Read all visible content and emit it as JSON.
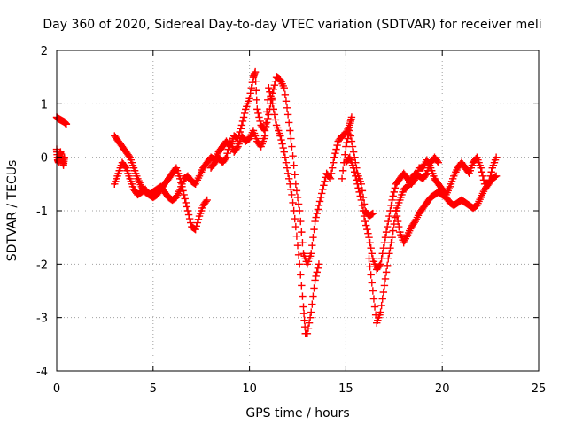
{
  "chart_data": {
    "type": "scatter",
    "title": "Day 360 of 2020, Sidereal Day-to-day VTEC variation (SDTVAR) for receiver meli",
    "xlabel": "GPS time / hours",
    "ylabel": "SDTVAR / TECUs",
    "xlim": [
      0,
      25
    ],
    "ylim": [
      -4,
      2
    ],
    "xticks": [
      0,
      5,
      10,
      15,
      20,
      25
    ],
    "yticks": [
      -4,
      -3,
      -2,
      -1,
      0,
      1,
      2
    ],
    "grid": true,
    "marker": "+",
    "color": "#ff0000",
    "series": [
      {
        "name": "SDTVAR",
        "segments": [
          [
            [
              0.0,
              0.75
            ],
            [
              0.1,
              0.72
            ],
            [
              0.2,
              0.7
            ],
            [
              0.3,
              0.68
            ],
            [
              0.4,
              0.66
            ],
            [
              0.5,
              0.62
            ]
          ],
          [
            [
              0.0,
              0.15
            ],
            [
              0.05,
              -0.05
            ],
            [
              0.1,
              -0.1
            ],
            [
              0.15,
              0.05
            ],
            [
              0.2,
              0.1
            ],
            [
              0.3,
              -0.05
            ],
            [
              0.35,
              -0.15
            ],
            [
              0.4,
              0.0
            ]
          ],
          [
            [
              3.0,
              0.4
            ],
            [
              3.2,
              0.3
            ],
            [
              3.4,
              0.2
            ],
            [
              3.6,
              0.1
            ],
            [
              3.8,
              0.0
            ],
            [
              4.0,
              -0.2
            ],
            [
              4.2,
              -0.4
            ],
            [
              4.4,
              -0.55
            ],
            [
              4.6,
              -0.65
            ],
            [
              4.8,
              -0.7
            ],
            [
              5.0,
              -0.75
            ],
            [
              5.2,
              -0.7
            ],
            [
              5.4,
              -0.6
            ],
            [
              5.6,
              -0.5
            ],
            [
              5.8,
              -0.4
            ],
            [
              6.0,
              -0.3
            ],
            [
              6.2,
              -0.2
            ],
            [
              6.4,
              -0.4
            ],
            [
              6.6,
              -0.7
            ],
            [
              6.8,
              -1.0
            ],
            [
              7.0,
              -1.3
            ],
            [
              7.2,
              -1.35
            ],
            [
              7.4,
              -1.1
            ],
            [
              7.6,
              -0.9
            ],
            [
              7.8,
              -0.8
            ]
          ],
          [
            [
              3.0,
              -0.5
            ],
            [
              3.2,
              -0.3
            ],
            [
              3.4,
              -0.1
            ],
            [
              3.6,
              -0.2
            ],
            [
              3.8,
              -0.4
            ],
            [
              4.0,
              -0.6
            ],
            [
              4.2,
              -0.7
            ],
            [
              4.4,
              -0.65
            ],
            [
              4.6,
              -0.6
            ],
            [
              4.8,
              -0.7
            ],
            [
              5.0,
              -0.65
            ],
            [
              5.2,
              -0.6
            ],
            [
              5.4,
              -0.55
            ],
            [
              5.6,
              -0.65
            ],
            [
              5.8,
              -0.75
            ],
            [
              6.0,
              -0.8
            ],
            [
              6.2,
              -0.75
            ],
            [
              6.4,
              -0.6
            ],
            [
              6.6,
              -0.4
            ],
            [
              6.8,
              -0.35
            ],
            [
              7.0,
              -0.45
            ],
            [
              7.2,
              -0.5
            ],
            [
              7.4,
              -0.35
            ],
            [
              7.6,
              -0.2
            ],
            [
              7.8,
              -0.1
            ],
            [
              8.0,
              0.0
            ],
            [
              8.2,
              -0.05
            ],
            [
              8.4,
              0.1
            ],
            [
              8.6,
              0.2
            ],
            [
              8.8,
              0.3
            ],
            [
              9.0,
              0.2
            ],
            [
              9.2,
              0.4
            ],
            [
              9.4,
              0.35
            ],
            [
              9.6,
              0.6
            ],
            [
              9.8,
              0.9
            ],
            [
              10.0,
              1.1
            ],
            [
              10.2,
              1.5
            ],
            [
              10.3,
              1.6
            ],
            [
              10.4,
              0.9
            ],
            [
              10.6,
              0.6
            ],
            [
              10.8,
              0.5
            ],
            [
              11.0,
              0.8
            ],
            [
              11.2,
              1.2
            ],
            [
              11.4,
              1.5
            ],
            [
              11.6,
              1.45
            ],
            [
              11.8,
              1.3
            ],
            [
              12.0,
              0.8
            ],
            [
              12.2,
              0.2
            ],
            [
              12.4,
              -0.5
            ],
            [
              12.6,
              -1.0
            ],
            [
              12.8,
              -1.8
            ],
            [
              13.0,
              -2.0
            ],
            [
              13.2,
              -1.8
            ],
            [
              13.4,
              -1.2
            ],
            [
              13.6,
              -0.9
            ],
            [
              13.8,
              -0.6
            ],
            [
              14.0,
              -0.3
            ],
            [
              14.2,
              -0.4
            ],
            [
              14.4,
              0.0
            ],
            [
              14.6,
              0.3
            ],
            [
              14.8,
              0.4
            ],
            [
              15.0,
              0.45
            ],
            [
              15.2,
              0.6
            ],
            [
              15.3,
              0.75
            ]
          ],
          [
            [
              8.0,
              -0.2
            ],
            [
              8.2,
              -0.1
            ],
            [
              8.4,
              0.0
            ],
            [
              8.6,
              -0.1
            ],
            [
              8.8,
              0.0
            ],
            [
              9.0,
              0.3
            ],
            [
              9.2,
              0.1
            ],
            [
              9.4,
              0.2
            ],
            [
              9.6,
              0.4
            ],
            [
              9.8,
              0.3
            ],
            [
              10.0,
              0.35
            ],
            [
              10.2,
              0.5
            ],
            [
              10.4,
              0.3
            ],
            [
              10.6,
              0.2
            ],
            [
              10.8,
              0.4
            ],
            [
              11.0,
              1.3
            ],
            [
              11.2,
              1.0
            ],
            [
              11.4,
              0.6
            ],
            [
              11.6,
              0.4
            ],
            [
              11.8,
              0.1
            ],
            [
              12.0,
              -0.3
            ],
            [
              12.2,
              -0.7
            ],
            [
              12.4,
              -1.3
            ],
            [
              12.6,
              -2.0
            ],
            [
              12.8,
              -2.8
            ],
            [
              12.9,
              -3.3
            ],
            [
              13.0,
              -3.3
            ],
            [
              13.2,
              -2.9
            ],
            [
              13.4,
              -2.3
            ],
            [
              13.6,
              -2.0
            ]
          ],
          [
            [
              15.0,
              -0.1
            ],
            [
              15.2,
              0.0
            ],
            [
              15.4,
              -0.2
            ],
            [
              15.6,
              -0.5
            ],
            [
              15.8,
              -0.8
            ],
            [
              16.0,
              -1.2
            ],
            [
              16.2,
              -1.5
            ],
            [
              16.4,
              -1.9
            ],
            [
              16.6,
              -2.1
            ],
            [
              16.8,
              -2.0
            ],
            [
              17.0,
              -1.6
            ],
            [
              17.2,
              -1.2
            ],
            [
              17.4,
              -0.8
            ],
            [
              17.6,
              -0.5
            ],
            [
              17.8,
              -0.4
            ],
            [
              18.0,
              -0.3
            ],
            [
              18.2,
              -0.4
            ],
            [
              18.4,
              -0.5
            ],
            [
              18.6,
              -0.4
            ],
            [
              18.8,
              -0.2
            ],
            [
              19.0,
              -0.2
            ],
            [
              19.2,
              -0.05
            ],
            [
              19.4,
              -0.2
            ],
            [
              19.6,
              -0.4
            ],
            [
              19.8,
              -0.5
            ],
            [
              20.0,
              -0.6
            ],
            [
              20.2,
              -0.7
            ],
            [
              20.4,
              -0.55
            ],
            [
              20.6,
              -0.35
            ],
            [
              20.8,
              -0.2
            ],
            [
              21.0,
              -0.1
            ],
            [
              21.2,
              -0.2
            ],
            [
              21.4,
              -0.3
            ],
            [
              21.6,
              -0.1
            ],
            [
              21.8,
              0.0
            ],
            [
              22.0,
              -0.2
            ],
            [
              22.2,
              -0.5
            ],
            [
              22.4,
              -0.5
            ],
            [
              22.6,
              -0.2
            ],
            [
              22.8,
              0.0
            ]
          ],
          [
            [
              16.2,
              -1.9
            ],
            [
              16.4,
              -2.5
            ],
            [
              16.6,
              -3.1
            ],
            [
              16.8,
              -2.9
            ],
            [
              17.0,
              -2.4
            ],
            [
              17.2,
              -1.9
            ],
            [
              17.4,
              -1.5
            ],
            [
              17.6,
              -1.0
            ],
            [
              17.8,
              -0.8
            ],
            [
              18.0,
              -0.6
            ],
            [
              18.2,
              -0.55
            ],
            [
              18.4,
              -0.4
            ],
            [
              18.6,
              -0.3
            ],
            [
              18.8,
              -0.35
            ],
            [
              19.0,
              -0.4
            ],
            [
              19.2,
              -0.3
            ],
            [
              19.4,
              -0.1
            ],
            [
              19.6,
              0.0
            ],
            [
              19.8,
              -0.1
            ]
          ],
          [
            [
              17.6,
              -1.0
            ],
            [
              17.8,
              -1.4
            ],
            [
              18.0,
              -1.6
            ],
            [
              18.2,
              -1.45
            ],
            [
              18.4,
              -1.3
            ],
            [
              18.6,
              -1.2
            ],
            [
              18.8,
              -1.05
            ],
            [
              19.0,
              -0.95
            ],
            [
              19.2,
              -0.85
            ],
            [
              19.4,
              -0.75
            ],
            [
              19.6,
              -0.7
            ],
            [
              19.8,
              -0.65
            ],
            [
              20.0,
              -0.7
            ],
            [
              20.2,
              -0.75
            ],
            [
              20.4,
              -0.85
            ],
            [
              20.6,
              -0.9
            ],
            [
              20.8,
              -0.85
            ],
            [
              21.0,
              -0.8
            ],
            [
              21.2,
              -0.85
            ],
            [
              21.4,
              -0.9
            ],
            [
              21.6,
              -0.95
            ],
            [
              21.8,
              -0.9
            ],
            [
              22.0,
              -0.75
            ],
            [
              22.2,
              -0.6
            ],
            [
              22.4,
              -0.5
            ],
            [
              22.6,
              -0.4
            ],
            [
              22.8,
              -0.35
            ]
          ],
          [
            [
              14.8,
              -0.4
            ],
            [
              15.0,
              0.2
            ],
            [
              15.2,
              0.5
            ],
            [
              15.4,
              0.1
            ],
            [
              15.6,
              -0.3
            ],
            [
              15.8,
              -0.5
            ],
            [
              16.0,
              -1.0
            ],
            [
              16.2,
              -1.1
            ],
            [
              16.4,
              -1.05
            ]
          ]
        ]
      }
    ]
  }
}
